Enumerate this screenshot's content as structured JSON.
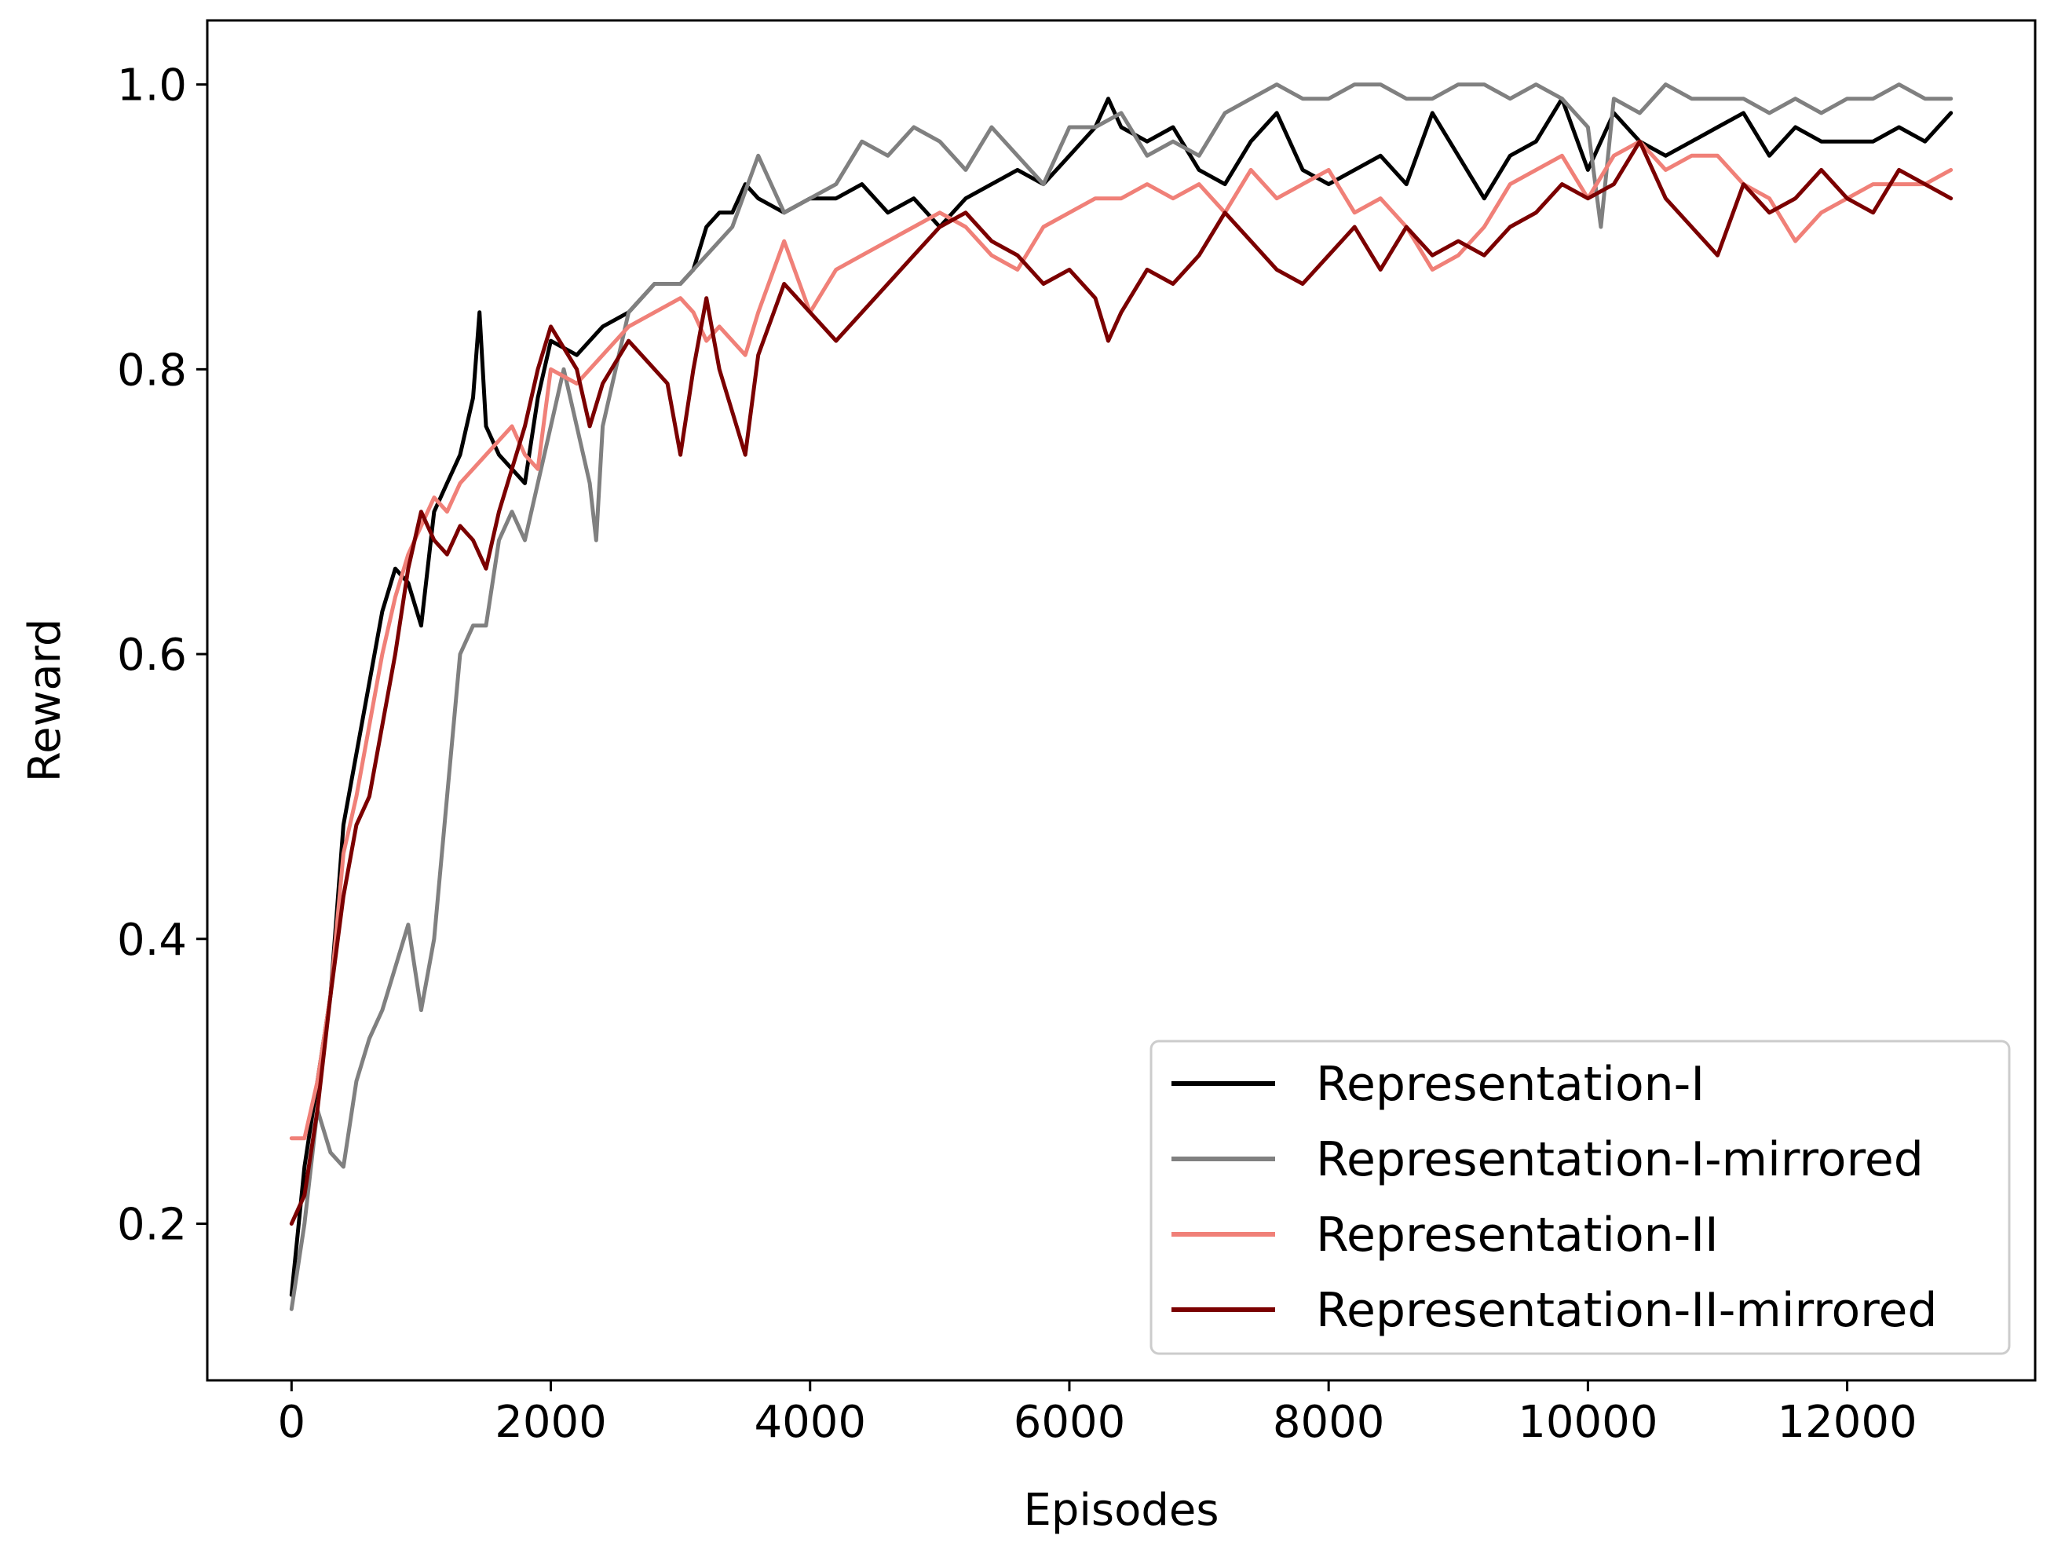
{
  "chart_data": {
    "type": "line",
    "title": "",
    "xlabel": "Episodes",
    "ylabel": "Reward",
    "xlim": [
      -650,
      13450
    ],
    "ylim": [
      0.09,
      1.045
    ],
    "xticks": [
      0,
      2000,
      4000,
      6000,
      8000,
      10000,
      12000
    ],
    "xtick_labels": [
      "0",
      "2000",
      "4000",
      "6000",
      "8000",
      "10000",
      "12000"
    ],
    "yticks": [
      0.2,
      0.4,
      0.6,
      0.8,
      1.0
    ],
    "ytick_labels": [
      "0.2",
      "0.4",
      "0.6",
      "0.8",
      "1.0"
    ],
    "grid": false,
    "legend_position": "lower-right",
    "series": [
      {
        "name": "Representation-I",
        "color": "#000000",
        "x": [
          0,
          100,
          200,
          300,
          400,
          500,
          600,
          700,
          800,
          900,
          1000,
          1100,
          1200,
          1300,
          1400,
          1450,
          1500,
          1600,
          1700,
          1800,
          1900,
          2000,
          2200,
          2400,
          2600,
          2800,
          3000,
          3100,
          3200,
          3300,
          3400,
          3500,
          3600,
          3800,
          4000,
          4200,
          4400,
          4600,
          4800,
          5000,
          5200,
          5400,
          5600,
          5800,
          6000,
          6200,
          6300,
          6400,
          6600,
          6800,
          7000,
          7200,
          7400,
          7600,
          7800,
          8000,
          8200,
          8400,
          8600,
          8800,
          9000,
          9200,
          9400,
          9600,
          9800,
          10000,
          10200,
          10400,
          10600,
          10800,
          11000,
          11200,
          11400,
          11600,
          11800,
          12000,
          12200,
          12400,
          12600,
          12800
        ],
        "values": [
          0.15,
          0.24,
          0.3,
          0.36,
          0.48,
          0.53,
          0.58,
          0.63,
          0.66,
          0.65,
          0.62,
          0.7,
          0.72,
          0.74,
          0.78,
          0.84,
          0.76,
          0.74,
          0.73,
          0.72,
          0.78,
          0.82,
          0.81,
          0.83,
          0.84,
          0.86,
          0.86,
          0.87,
          0.9,
          0.91,
          0.91,
          0.93,
          0.92,
          0.91,
          0.92,
          0.92,
          0.93,
          0.91,
          0.92,
          0.9,
          0.92,
          0.93,
          0.94,
          0.93,
          0.95,
          0.97,
          0.99,
          0.97,
          0.96,
          0.97,
          0.94,
          0.93,
          0.96,
          0.98,
          0.94,
          0.93,
          0.94,
          0.95,
          0.93,
          0.98,
          0.95,
          0.92,
          0.95,
          0.96,
          0.99,
          0.94,
          0.98,
          0.96,
          0.95,
          0.96,
          0.97,
          0.98,
          0.95,
          0.97,
          0.96,
          0.96,
          0.96,
          0.97,
          0.96,
          0.98
        ]
      },
      {
        "name": "Representation-I-mirrored",
        "color": "#808080",
        "x": [
          0,
          100,
          200,
          300,
          400,
          500,
          600,
          700,
          800,
          900,
          1000,
          1100,
          1200,
          1300,
          1400,
          1500,
          1600,
          1700,
          1800,
          1900,
          2000,
          2100,
          2200,
          2300,
          2350,
          2400,
          2500,
          2600,
          2800,
          3000,
          3200,
          3400,
          3600,
          3700,
          3800,
          4000,
          4200,
          4400,
          4600,
          4800,
          5000,
          5200,
          5400,
          5600,
          5800,
          6000,
          6200,
          6400,
          6600,
          6800,
          7000,
          7200,
          7400,
          7600,
          7800,
          8000,
          8200,
          8400,
          8600,
          8800,
          9000,
          9200,
          9400,
          9600,
          9800,
          10000,
          10100,
          10200,
          10400,
          10600,
          10800,
          11000,
          11200,
          11400,
          11600,
          11800,
          12000,
          12200,
          12400,
          12600,
          12800
        ],
        "values": [
          0.14,
          0.2,
          0.28,
          0.25,
          0.24,
          0.3,
          0.33,
          0.35,
          0.38,
          0.41,
          0.35,
          0.4,
          0.5,
          0.6,
          0.62,
          0.62,
          0.68,
          0.7,
          0.68,
          0.72,
          0.76,
          0.8,
          0.76,
          0.72,
          0.68,
          0.76,
          0.8,
          0.84,
          0.86,
          0.86,
          0.88,
          0.9,
          0.95,
          0.93,
          0.91,
          0.92,
          0.93,
          0.96,
          0.95,
          0.97,
          0.96,
          0.94,
          0.97,
          0.95,
          0.93,
          0.97,
          0.97,
          0.98,
          0.95,
          0.96,
          0.95,
          0.98,
          0.99,
          1.0,
          0.99,
          0.99,
          1.0,
          1.0,
          0.99,
          0.99,
          1.0,
          1.0,
          0.99,
          1.0,
          0.99,
          0.97,
          0.9,
          0.99,
          0.98,
          1.0,
          0.99,
          0.99,
          0.99,
          0.98,
          0.99,
          0.98,
          0.99,
          0.99,
          1.0,
          0.99,
          0.99
        ]
      },
      {
        "name": "Representation-II",
        "color": "#F08078",
        "x": [
          0,
          100,
          200,
          300,
          400,
          500,
          600,
          700,
          800,
          900,
          1000,
          1100,
          1200,
          1300,
          1400,
          1500,
          1600,
          1700,
          1800,
          1900,
          2000,
          2200,
          2400,
          2600,
          2800,
          3000,
          3100,
          3200,
          3300,
          3400,
          3500,
          3600,
          3800,
          4000,
          4200,
          4400,
          4600,
          4800,
          5000,
          5200,
          5400,
          5600,
          5800,
          6000,
          6200,
          6400,
          6600,
          6800,
          7000,
          7200,
          7400,
          7600,
          7800,
          8000,
          8200,
          8400,
          8600,
          8800,
          9000,
          9200,
          9400,
          9600,
          9800,
          10000,
          10200,
          10400,
          10600,
          10800,
          11000,
          11200,
          11400,
          11600,
          11800,
          12000,
          12200,
          12400,
          12600,
          12800
        ],
        "values": [
          0.26,
          0.26,
          0.3,
          0.36,
          0.46,
          0.5,
          0.55,
          0.6,
          0.64,
          0.67,
          0.69,
          0.71,
          0.7,
          0.72,
          0.73,
          0.74,
          0.75,
          0.76,
          0.74,
          0.73,
          0.8,
          0.79,
          0.81,
          0.83,
          0.84,
          0.85,
          0.84,
          0.82,
          0.83,
          0.82,
          0.81,
          0.84,
          0.89,
          0.84,
          0.87,
          0.88,
          0.89,
          0.9,
          0.91,
          0.9,
          0.88,
          0.87,
          0.9,
          0.91,
          0.92,
          0.92,
          0.93,
          0.92,
          0.93,
          0.91,
          0.94,
          0.92,
          0.93,
          0.94,
          0.91,
          0.92,
          0.9,
          0.87,
          0.88,
          0.9,
          0.93,
          0.94,
          0.95,
          0.92,
          0.95,
          0.96,
          0.94,
          0.95,
          0.95,
          0.93,
          0.92,
          0.89,
          0.91,
          0.92,
          0.93,
          0.93,
          0.93,
          0.94
        ]
      },
      {
        "name": "Representation-II-mirrored",
        "color": "#7B0000",
        "x": [
          0,
          100,
          200,
          300,
          400,
          500,
          600,
          700,
          800,
          900,
          1000,
          1100,
          1200,
          1300,
          1400,
          1500,
          1600,
          1700,
          1800,
          1900,
          2000,
          2200,
          2300,
          2400,
          2600,
          2800,
          2900,
          3000,
          3100,
          3200,
          3300,
          3400,
          3500,
          3600,
          3800,
          4000,
          4200,
          4400,
          4600,
          4800,
          5000,
          5200,
          5400,
          5600,
          5800,
          6000,
          6200,
          6300,
          6400,
          6600,
          6800,
          7000,
          7200,
          7400,
          7600,
          7800,
          8000,
          8200,
          8400,
          8600,
          8800,
          9000,
          9200,
          9400,
          9600,
          9800,
          10000,
          10200,
          10400,
          10600,
          10800,
          11000,
          11200,
          11400,
          11600,
          11800,
          12000,
          12200,
          12400,
          12600,
          12800
        ],
        "values": [
          0.2,
          0.22,
          0.28,
          0.36,
          0.43,
          0.48,
          0.5,
          0.55,
          0.6,
          0.66,
          0.7,
          0.68,
          0.67,
          0.69,
          0.68,
          0.66,
          0.7,
          0.73,
          0.76,
          0.8,
          0.83,
          0.8,
          0.76,
          0.79,
          0.82,
          0.8,
          0.79,
          0.74,
          0.8,
          0.85,
          0.8,
          0.77,
          0.74,
          0.81,
          0.86,
          0.84,
          0.82,
          0.84,
          0.86,
          0.88,
          0.9,
          0.91,
          0.89,
          0.88,
          0.86,
          0.87,
          0.85,
          0.82,
          0.84,
          0.87,
          0.86,
          0.88,
          0.91,
          0.89,
          0.87,
          0.86,
          0.88,
          0.9,
          0.87,
          0.9,
          0.88,
          0.89,
          0.88,
          0.9,
          0.91,
          0.93,
          0.92,
          0.93,
          0.96,
          0.92,
          0.9,
          0.88,
          0.93,
          0.91,
          0.92,
          0.94,
          0.92,
          0.91,
          0.94,
          0.93,
          0.92
        ]
      }
    ]
  }
}
